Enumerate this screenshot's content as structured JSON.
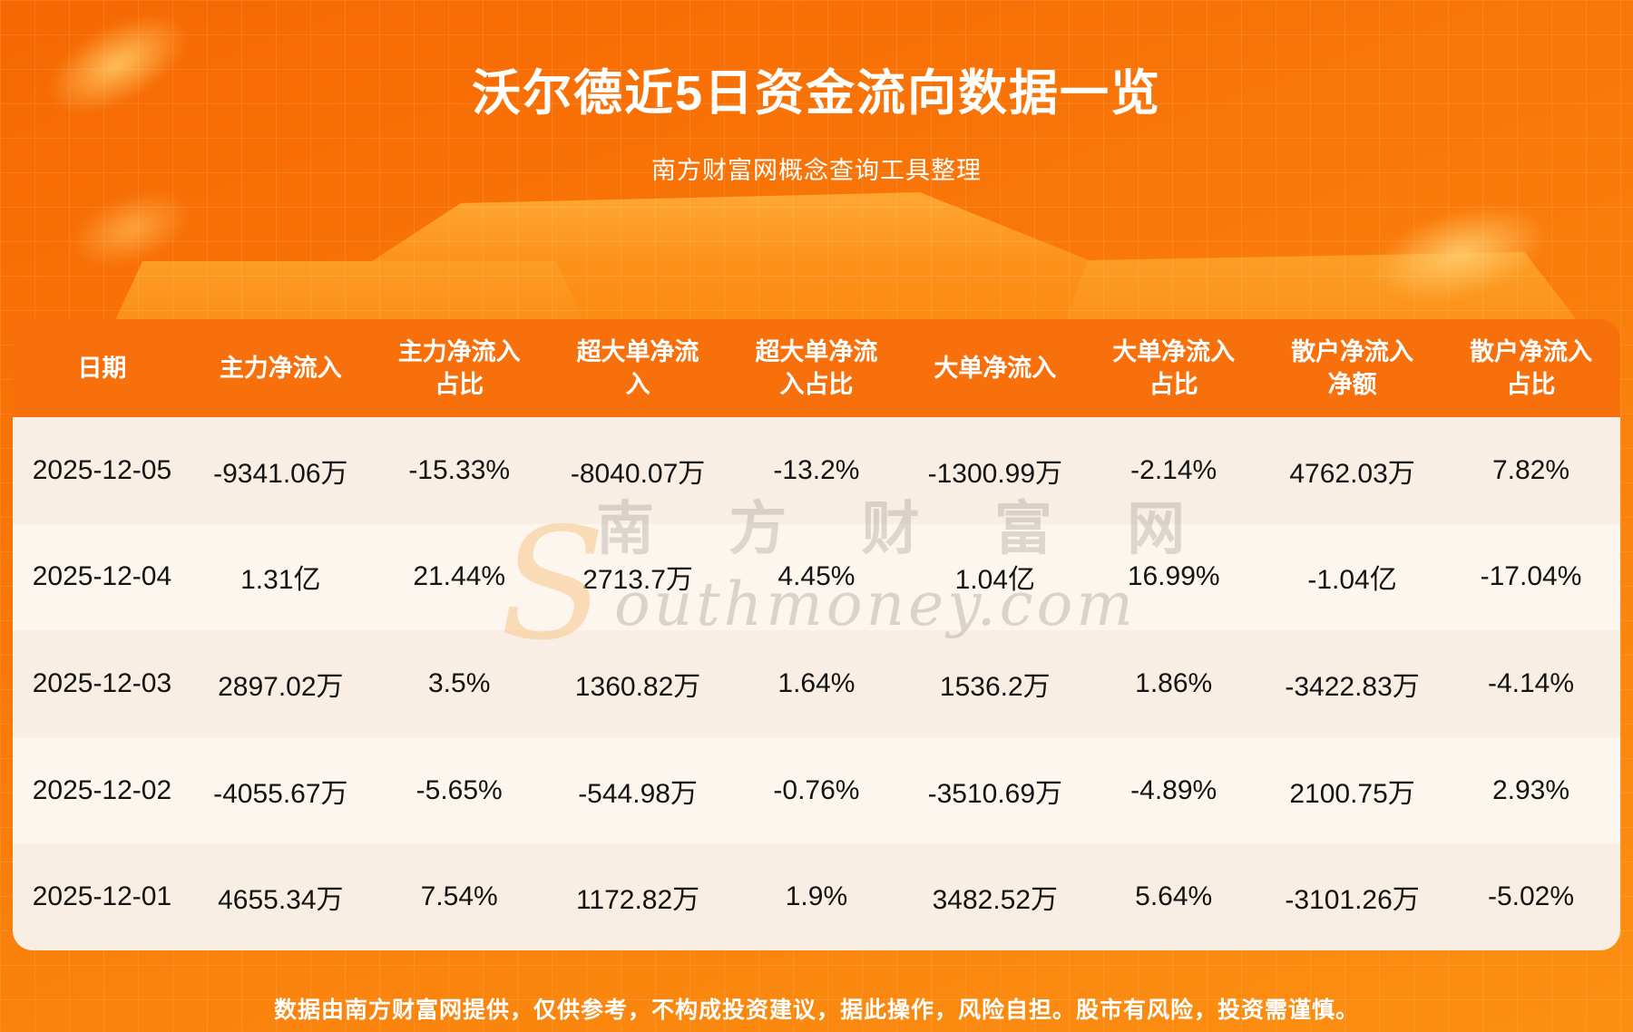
{
  "page": {
    "title": "沃尔德近5日资金流向数据一览",
    "subtitle": "南方财富网概念查询工具整理",
    "footer_disclaimer": "数据由南方财富网提供，仅供参考，不构成投资建议，据此操作，风险自担。股市有风险，投资需谨慎。",
    "watermark": {
      "s_initial": "S",
      "cjk": "南 方 财 富 网",
      "latin": "outhmoney.com"
    }
  },
  "colors": {
    "background_top": "#f66802",
    "background_bottom": "#fb9012",
    "table_header_orange": "#f8700c",
    "row_cream": "#f9eee3",
    "row_light": "#fdf6ee",
    "text_dark": "#141414",
    "text_white": "#ffffff"
  },
  "chart_data": {
    "type": "table",
    "title": "沃尔德近5日资金流向数据一览",
    "subtitle": "南方财富网概念查询工具整理",
    "columns": [
      "日期",
      "主力净流入",
      "主力净流入占比",
      "超大单净流入",
      "超大单净流入占比",
      "大单净流入",
      "大单净流入占比",
      "散户净流入净额",
      "散户净流入占比"
    ],
    "header_lines": [
      [
        "日期"
      ],
      [
        "主力净流入"
      ],
      [
        "主力净流入",
        "占比"
      ],
      [
        "超大单净流",
        "入"
      ],
      [
        "超大单净流",
        "入占比"
      ],
      [
        "大单净流入"
      ],
      [
        "大单净流入",
        "占比"
      ],
      [
        "散户净流入",
        "净额"
      ],
      [
        "散户净流入",
        "占比"
      ]
    ],
    "rows": [
      [
        "2025-12-05",
        "-9341.06万",
        "-15.33%",
        "-8040.07万",
        "-13.2%",
        "-1300.99万",
        "-2.14%",
        "4762.03万",
        "7.82%"
      ],
      [
        "2025-12-04",
        "1.31亿",
        "21.44%",
        "2713.7万",
        "4.45%",
        "1.04亿",
        "16.99%",
        "-1.04亿",
        "-17.04%"
      ],
      [
        "2025-12-03",
        "2897.02万",
        "3.5%",
        "1360.82万",
        "1.64%",
        "1536.2万",
        "1.86%",
        "-3422.83万",
        "-4.14%"
      ],
      [
        "2025-12-02",
        "-4055.67万",
        "-5.65%",
        "-544.98万",
        "-0.76%",
        "-3510.69万",
        "-4.89%",
        "2100.75万",
        "2.93%"
      ],
      [
        "2025-12-01",
        "4655.34万",
        "7.54%",
        "1172.82万",
        "1.9%",
        "3482.52万",
        "5.64%",
        "-3101.26万",
        "-5.02%"
      ]
    ]
  }
}
